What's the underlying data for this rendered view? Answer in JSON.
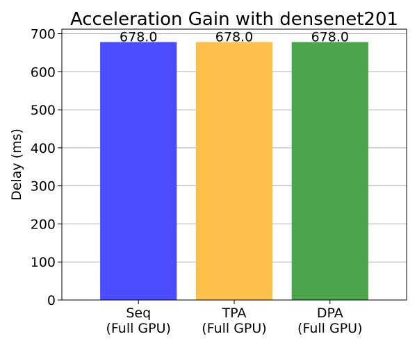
{
  "chart_data": {
    "type": "bar",
    "title": "Acceleration Gain with densenet201",
    "xlabel": "",
    "ylabel": "Delay (ms)",
    "categories": [
      [
        "Seq",
        "(Full GPU)"
      ],
      [
        "TPA",
        "(Full GPU)"
      ],
      [
        "DPA",
        "(Full GPU)"
      ]
    ],
    "values": [
      678.0,
      678.0,
      678.0
    ],
    "data_labels": [
      "678.0",
      "678.0",
      "678.0"
    ],
    "colors": [
      "#4b4bff",
      "#ffbf4b",
      "#4ba64b"
    ],
    "ylim": [
      0,
      711.9
    ],
    "yticks": [
      0,
      100,
      200,
      300,
      400,
      500,
      600,
      700
    ],
    "grid": true,
    "grid_axis": "y",
    "grid_color": "#b0b0b0",
    "legend": "none"
  }
}
